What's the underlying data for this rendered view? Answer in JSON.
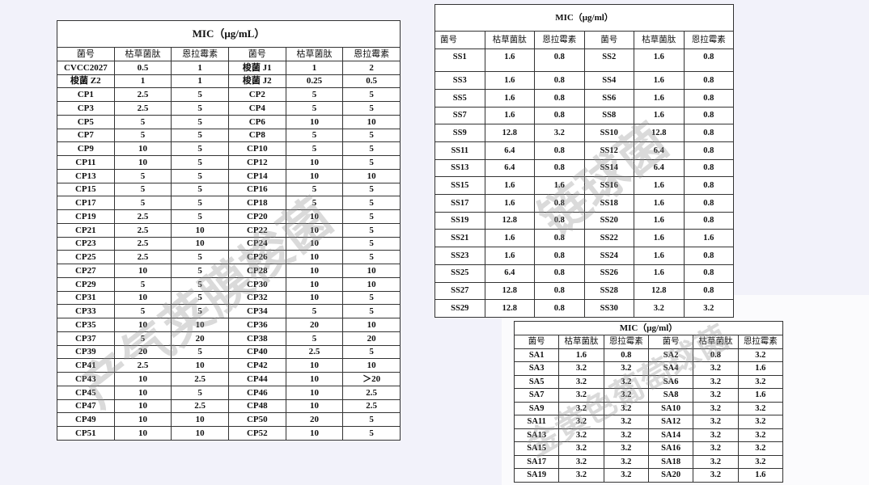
{
  "tables": [
    {
      "title": "MIC（μg/mL）",
      "watermark": "产气荚膜梭菌",
      "headers": [
        "菌号",
        "枯草菌肽",
        "恩拉霉素",
        "菌号",
        "枯草菌肽",
        "恩拉霉素"
      ],
      "rows": [
        [
          "CVCC2027",
          "0.5",
          "1",
          "梭菌 J1",
          "1",
          "2"
        ],
        [
          "梭菌 Z2",
          "1",
          "1",
          "梭菌 J2",
          "0.25",
          "0.5"
        ],
        [
          "CP1",
          "2.5",
          "5",
          "CP2",
          "5",
          "5"
        ],
        [
          "CP3",
          "2.5",
          "5",
          "CP4",
          "5",
          "5"
        ],
        [
          "CP5",
          "5",
          "5",
          "CP6",
          "10",
          "10"
        ],
        [
          "CP7",
          "5",
          "5",
          "CP8",
          "5",
          "5"
        ],
        [
          "CP9",
          "10",
          "5",
          "CP10",
          "5",
          "5"
        ],
        [
          "CP11",
          "10",
          "5",
          "CP12",
          "10",
          "5"
        ],
        [
          "CP13",
          "5",
          "5",
          "CP14",
          "10",
          "10"
        ],
        [
          "CP15",
          "5",
          "5",
          "CP16",
          "5",
          "5"
        ],
        [
          "CP17",
          "5",
          "5",
          "CP18",
          "5",
          "5"
        ],
        [
          "CP19",
          "2.5",
          "5",
          "CP20",
          "10",
          "5"
        ],
        [
          "CP21",
          "2.5",
          "10",
          "CP22",
          "10",
          "5"
        ],
        [
          "CP23",
          "2.5",
          "10",
          "CP24",
          "10",
          "5"
        ],
        [
          "CP25",
          "2.5",
          "5",
          "CP26",
          "10",
          "5"
        ],
        [
          "CP27",
          "10",
          "5",
          "CP28",
          "10",
          "10"
        ],
        [
          "CP29",
          "5",
          "5",
          "CP30",
          "10",
          "10"
        ],
        [
          "CP31",
          "10",
          "5",
          "CP32",
          "10",
          "5"
        ],
        [
          "CP33",
          "5",
          "5",
          "CP34",
          "5",
          "5"
        ],
        [
          "CP35",
          "10",
          "10",
          "CP36",
          "20",
          "10"
        ],
        [
          "CP37",
          "5",
          "20",
          "CP38",
          "5",
          "20"
        ],
        [
          "CP39",
          "20",
          "5",
          "CP40",
          "2.5",
          "5"
        ],
        [
          "CP41",
          "2.5",
          "10",
          "CP42",
          "10",
          "10"
        ],
        [
          "CP43",
          "10",
          "2.5",
          "CP44",
          "10",
          "＞20"
        ],
        [
          "CP45",
          "10",
          "5",
          "CP46",
          "10",
          "2.5"
        ],
        [
          "CP47",
          "10",
          "2.5",
          "CP48",
          "10",
          "2.5"
        ],
        [
          "CP49",
          "10",
          "10",
          "CP50",
          "20",
          "5"
        ],
        [
          "CP51",
          "10",
          "10",
          "CP52",
          "10",
          "5"
        ]
      ]
    },
    {
      "title": "MIC（μg/ml）",
      "watermark": "链球菌",
      "headers": [
        "菌号",
        "枯草菌肽",
        "恩拉霉素",
        "菌号",
        "枯草菌肽",
        "恩拉霉素"
      ],
      "rows": [
        [
          "SS1",
          "1.6",
          "0.8",
          "SS2",
          "1.6",
          "0.8"
        ],
        [
          "SS3",
          "1.6",
          "0.8",
          "SS4",
          "1.6",
          "0.8"
        ],
        [
          "SS5",
          "1.6",
          "0.8",
          "SS6",
          "1.6",
          "0.8"
        ],
        [
          "SS7",
          "1.6",
          "0.8",
          "SS8",
          "1.6",
          "0.8"
        ],
        [
          "SS9",
          "12.8",
          "3.2",
          "SS10",
          "12.8",
          "0.8"
        ],
        [
          "SS11",
          "6.4",
          "0.8",
          "SS12",
          "6.4",
          "0.8"
        ],
        [
          "SS13",
          "6.4",
          "0.8",
          "SS14",
          "6.4",
          "0.8"
        ],
        [
          "SS15",
          "1.6",
          "1.6",
          "SS16",
          "1.6",
          "0.8"
        ],
        [
          "SS17",
          "1.6",
          "0.8",
          "SS18",
          "1.6",
          "0.8"
        ],
        [
          "SS19",
          "12.8",
          "0.8",
          "SS20",
          "1.6",
          "0.8"
        ],
        [
          "SS21",
          "1.6",
          "0.8",
          "SS22",
          "1.6",
          "1.6"
        ],
        [
          "SS23",
          "1.6",
          "0.8",
          "SS24",
          "1.6",
          "0.8"
        ],
        [
          "SS25",
          "6.4",
          "0.8",
          "SS26",
          "1.6",
          "0.8"
        ],
        [
          "SS27",
          "12.8",
          "0.8",
          "SS28",
          "12.8",
          "0.8"
        ],
        [
          "SS29",
          "12.8",
          "0.8",
          "SS30",
          "3.2",
          "3.2"
        ]
      ]
    },
    {
      "title": "MIC（μg/ml）",
      "watermark": "金黄色葡萄球菌",
      "headers": [
        "菌号",
        "枯草菌肽",
        "恩拉霉素",
        "菌号",
        "枯草菌肽",
        "恩拉霉素"
      ],
      "rows": [
        [
          "SA1",
          "1.6",
          "0.8",
          "SA2",
          "0.8",
          "3.2"
        ],
        [
          "SA3",
          "3.2",
          "3.2",
          "SA4",
          "3.2",
          "1.6"
        ],
        [
          "SA5",
          "3.2",
          "3.2",
          "SA6",
          "3.2",
          "3.2"
        ],
        [
          "SA7",
          "3.2",
          "3.2",
          "SA8",
          "3.2",
          "1.6"
        ],
        [
          "SA9",
          "3.2",
          "3.2",
          "SA10",
          "3.2",
          "3.2"
        ],
        [
          "SA11",
          "3.2",
          "3.2",
          "SA12",
          "3.2",
          "3.2"
        ],
        [
          "SA13",
          "3.2",
          "3.2",
          "SA14",
          "3.2",
          "3.2"
        ],
        [
          "SA15",
          "3.2",
          "3.2",
          "SA16",
          "3.2",
          "3.2"
        ],
        [
          "SA17",
          "3.2",
          "3.2",
          "SA18",
          "3.2",
          "3.2"
        ],
        [
          "SA19",
          "3.2",
          "3.2",
          "SA20",
          "3.2",
          "1.6"
        ]
      ]
    }
  ]
}
